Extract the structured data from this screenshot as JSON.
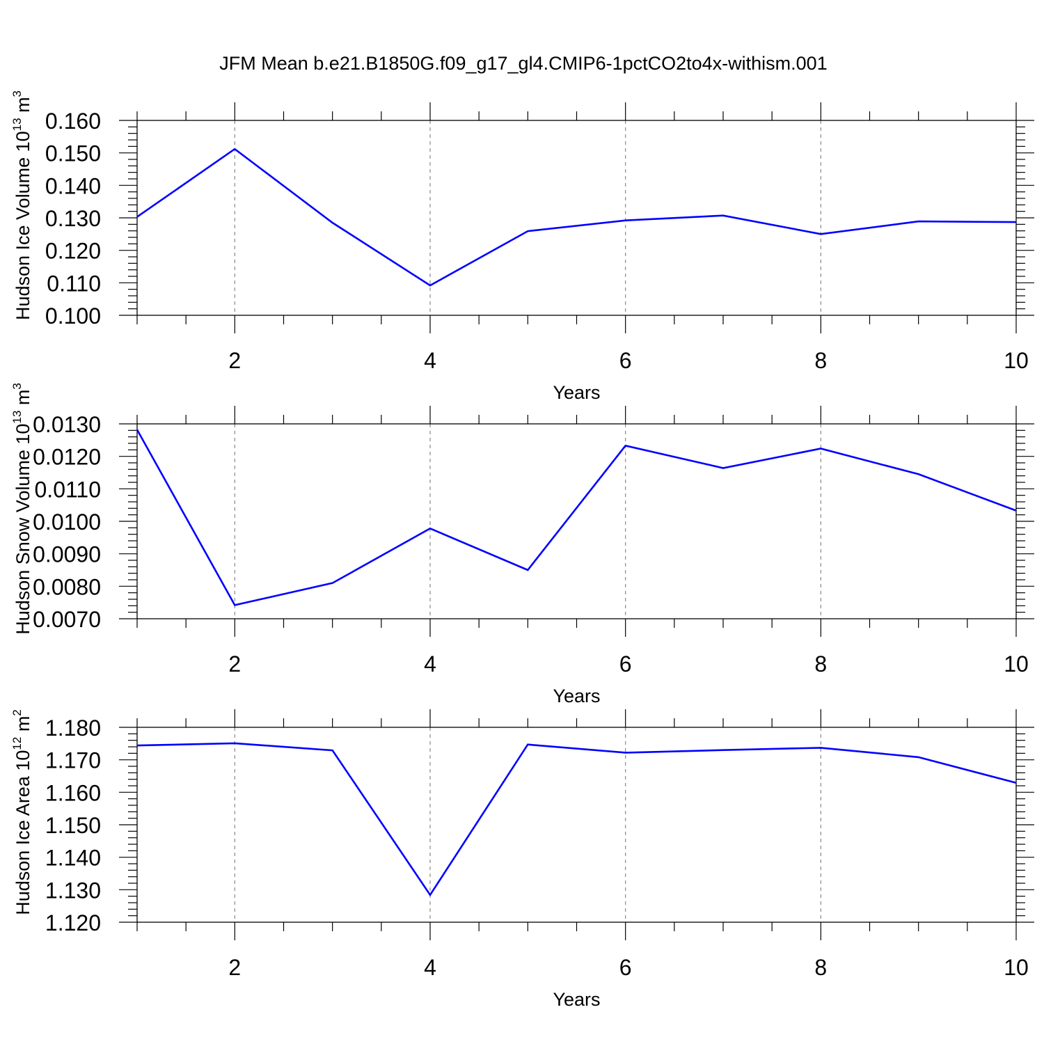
{
  "figure": {
    "title": "JFM Mean b.e21.B1850G.f09_g17_gl4.CMIP6-1pctCO2to4x-withism.001"
  },
  "chart_data": [
    {
      "type": "line",
      "ylabel": {
        "text": "Hudson Ice Volume 10",
        "exponent": "13",
        "unit": " m",
        "unit_exponent": "3"
      },
      "xlabel": "Years",
      "xlim": [
        1,
        10
      ],
      "ylim": [
        0.1,
        0.16
      ],
      "x_ticks": [
        2,
        4,
        6,
        8,
        10
      ],
      "y_ticks": [
        "0.100",
        "0.110",
        "0.120",
        "0.130",
        "0.140",
        "0.150",
        "0.160"
      ],
      "vertical_gridlines": "dashed",
      "line_color": "#0000ff",
      "x": [
        1,
        2,
        3,
        4,
        5,
        6,
        7,
        8,
        9,
        10
      ],
      "y": [
        0.1303,
        0.1512,
        0.1285,
        0.1092,
        0.1259,
        0.1292,
        0.1307,
        0.125,
        0.1289,
        0.1287
      ]
    },
    {
      "type": "line",
      "ylabel": {
        "text": "Hudson Snow Volume 10",
        "exponent": "13",
        "unit": " m",
        "unit_exponent": "3"
      },
      "xlabel": "Years",
      "xlim": [
        1,
        10
      ],
      "ylim": [
        0.007,
        0.013
      ],
      "x_ticks": [
        2,
        4,
        6,
        8,
        10
      ],
      "y_ticks": [
        "0.0070",
        "0.0080",
        "0.0090",
        "0.0100",
        "0.0110",
        "0.0120",
        "0.0130"
      ],
      "vertical_gridlines": "dashed",
      "line_color": "#0000ff",
      "x": [
        1,
        2,
        3,
        4,
        5,
        6,
        7,
        8,
        9,
        10
      ],
      "y": [
        0.01282,
        0.00742,
        0.0081,
        0.00978,
        0.0085,
        0.01233,
        0.01164,
        0.01224,
        0.01145,
        0.01033
      ]
    },
    {
      "type": "line",
      "ylabel": {
        "text": "Hudson Ice Area 10",
        "exponent": "12",
        "unit": " m",
        "unit_exponent": "2"
      },
      "xlabel": "Years",
      "xlim": [
        1,
        10
      ],
      "ylim": [
        1.12,
        1.18
      ],
      "x_ticks": [
        2,
        4,
        6,
        8,
        10
      ],
      "y_ticks": [
        "1.120",
        "1.130",
        "1.140",
        "1.150",
        "1.160",
        "1.170",
        "1.180"
      ],
      "vertical_gridlines": "dashed",
      "line_color": "#0000ff",
      "x": [
        1,
        2,
        3,
        4,
        5,
        6,
        7,
        8,
        9,
        10
      ],
      "y": [
        1.1744,
        1.1751,
        1.1729,
        1.1284,
        1.1747,
        1.1722,
        1.173,
        1.1737,
        1.1708,
        1.1629
      ]
    }
  ]
}
